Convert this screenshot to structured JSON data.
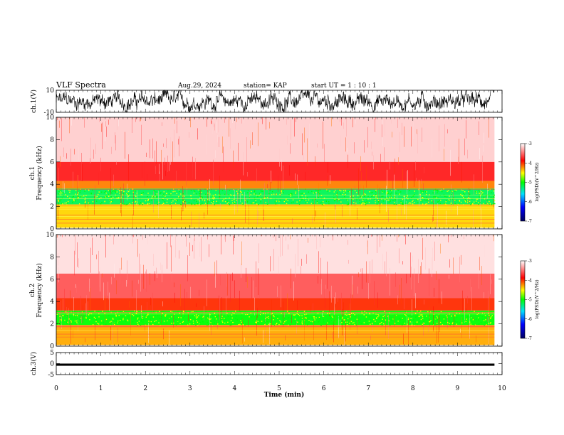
{
  "header": {
    "title": "VLF Spectra",
    "date": "Aug.29, 2024",
    "station": "station= KAP",
    "start": "start  UT =   1 : 10 : 1"
  },
  "chart_data": [
    {
      "type": "line",
      "name": "ch1-waveform",
      "ylabel": "ch.1(V)",
      "ylim": [
        -10,
        10
      ],
      "y_ticks": [
        "10",
        "-10"
      ],
      "xlim": [
        0,
        10
      ],
      "x_end_data": 9.83,
      "style": "dense noisy black trace, |amplitude| up to ~10 V"
    },
    {
      "type": "heatmap",
      "name": "ch1-spectrogram",
      "ylabel": "ch.1\nFrequency (kHz)",
      "ylim": [
        0,
        10
      ],
      "y_ticks": [
        "0",
        "2",
        "4",
        "6",
        "8",
        "10"
      ],
      "xlim": [
        0,
        10
      ],
      "x_end_data": 9.83,
      "bands": [
        {
          "f_low": 0.1,
          "f_high": 2.2,
          "level": -4.4
        },
        {
          "f_low": 2.2,
          "f_high": 3.6,
          "level": -5.2
        },
        {
          "f_low": 3.6,
          "f_high": 4.3,
          "level": -4.2
        },
        {
          "f_low": 4.3,
          "f_high": 6.0,
          "level": -3.8
        },
        {
          "f_low": 6.0,
          "f_high": 10.0,
          "level": -3.3
        }
      ],
      "colorbar": {
        "label": "log(PSD)(V^2/Hz)",
        "range": [
          -7,
          -3
        ],
        "ticks": [
          "-3",
          "-4",
          "-5",
          "-6",
          "-7"
        ]
      }
    },
    {
      "type": "heatmap",
      "name": "ch2-spectrogram",
      "ylabel": "ch.2\nFrequency (kHz)",
      "ylim": [
        0,
        10
      ],
      "y_ticks": [
        "0",
        "2",
        "4",
        "6",
        "8",
        "10"
      ],
      "xlim": [
        0,
        10
      ],
      "x_end_data": 9.83,
      "bands": [
        {
          "f_low": 0.1,
          "f_high": 1.9,
          "level": -4.3
        },
        {
          "f_low": 1.9,
          "f_high": 3.2,
          "level": -5.0
        },
        {
          "f_low": 3.2,
          "f_high": 4.3,
          "level": -4.0
        },
        {
          "f_low": 4.3,
          "f_high": 6.5,
          "level": -3.6
        },
        {
          "f_low": 6.5,
          "f_high": 10.0,
          "level": -3.2
        }
      ],
      "colorbar": {
        "label": "log(PSD)(V^2/Hz)",
        "range": [
          -7,
          -3
        ],
        "ticks": [
          "-3",
          "-4",
          "-5",
          "-6",
          "-7"
        ]
      }
    },
    {
      "type": "line",
      "name": "ch3-waveform",
      "ylabel": "ch.3(V)",
      "ylim": [
        -5,
        5
      ],
      "y_ticks": [
        "5",
        "0",
        "-5"
      ],
      "xlim": [
        0,
        10
      ],
      "x_end_data": 9.83,
      "band": [
        -1,
        0
      ],
      "xlabel": "Time (min)",
      "x_ticks": [
        "0",
        "1",
        "2",
        "3",
        "4",
        "5",
        "6",
        "7",
        "8",
        "9",
        "10"
      ]
    }
  ],
  "colors": {
    "background": "#ffffff",
    "trace": "#000000",
    "colormap": [
      "#000080",
      "#0000ff",
      "#00ffff",
      "#00ff00",
      "#ffff00",
      "#ff0000",
      "#ffffff"
    ]
  }
}
